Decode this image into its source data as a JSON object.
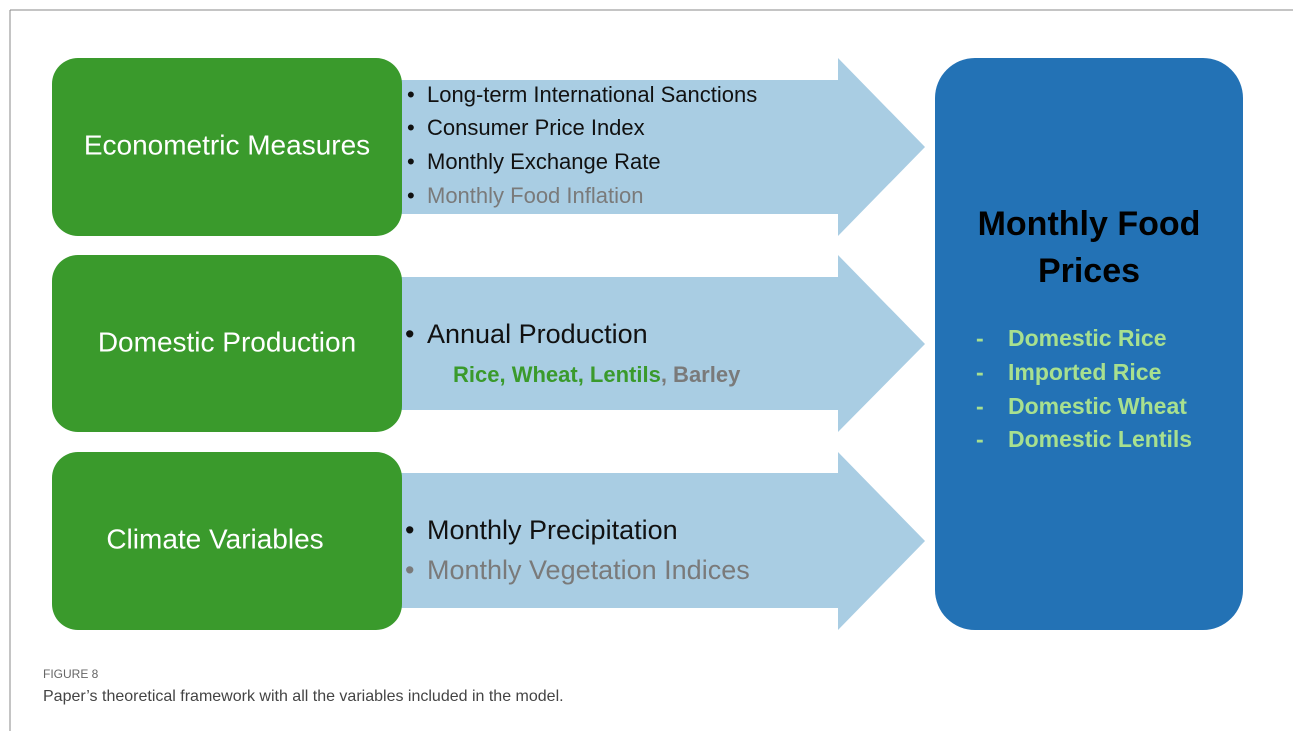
{
  "groups": [
    {
      "label": "Econometric Measures",
      "items": [
        "Long-term International Sanctions",
        "Consumer Price Index",
        "Monthly Exchange Rate",
        "Monthly Food Inflation"
      ]
    },
    {
      "label": "Domestic Production",
      "items": [
        "Annual Production"
      ],
      "crops": "Rice, Wheat, Lentils",
      "other_crops": ", Barley"
    },
    {
      "label": "Climate Variables",
      "items": [
        "Monthly Precipitation",
        "Monthly Vegetation Indices"
      ]
    }
  ],
  "target": {
    "title": [
      "Monthly Food",
      "Prices"
    ],
    "items": [
      "Domestic Rice",
      "Imported Rice",
      "Domestic Wheat",
      "Domestic Lentils"
    ]
  },
  "caption": {
    "label": "FIGURE 8",
    "text": "Paper’s theoretical framework with all the variables included in the model."
  }
}
